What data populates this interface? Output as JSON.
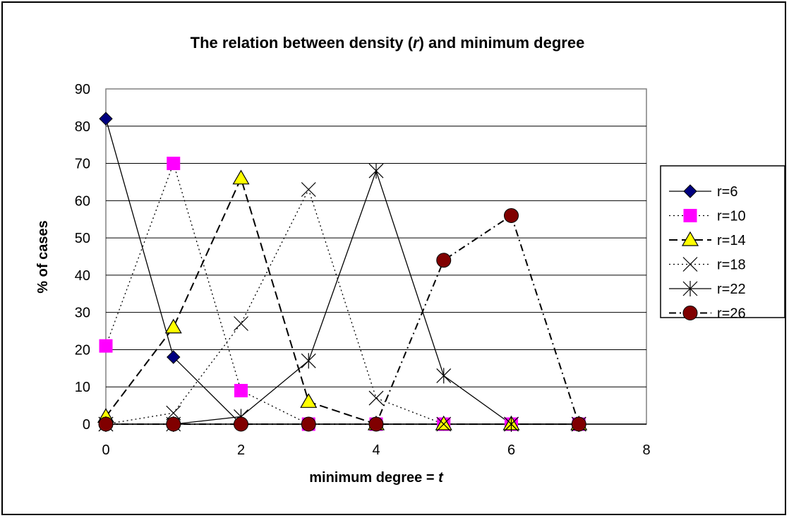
{
  "chart_data": {
    "type": "line",
    "title": {
      "prefix": "The relation between density (",
      "symbol": "r",
      "suffix": ") and minimum degree"
    },
    "xlabel": {
      "prefix": "minimum degree = ",
      "symbol": "t"
    },
    "ylabel": "% of cases",
    "xlim": [
      0,
      8
    ],
    "ylim": [
      0,
      90
    ],
    "x_ticks": [
      "0",
      "2",
      "4",
      "6",
      "8"
    ],
    "y_ticks": [
      "0",
      "10",
      "20",
      "30",
      "40",
      "50",
      "60",
      "70",
      "80",
      "90"
    ],
    "grid": "horizontal",
    "legend_position": "right",
    "series": [
      {
        "name": "r=6",
        "marker": "diamond",
        "line_style": "solid",
        "marker_color": "#000080",
        "points": [
          [
            0,
            82
          ],
          [
            1,
            18
          ],
          [
            2,
            0
          ],
          [
            3,
            0
          ],
          [
            4,
            0
          ],
          [
            5,
            0
          ],
          [
            6,
            0
          ],
          [
            7,
            0
          ]
        ]
      },
      {
        "name": "r=10",
        "marker": "square",
        "line_style": "dotted",
        "marker_color": "#ff00ff",
        "points": [
          [
            0,
            21
          ],
          [
            1,
            70
          ],
          [
            2,
            9
          ],
          [
            3,
            0
          ],
          [
            4,
            0
          ],
          [
            5,
            0
          ],
          [
            6,
            0
          ],
          [
            7,
            0
          ]
        ]
      },
      {
        "name": "r=14",
        "marker": "triangle",
        "line_style": "dashed",
        "marker_color": "#ffff00",
        "points": [
          [
            0,
            2
          ],
          [
            1,
            26
          ],
          [
            2,
            66
          ],
          [
            3,
            6
          ],
          [
            4,
            0
          ],
          [
            5,
            0
          ],
          [
            6,
            0
          ],
          [
            7,
            0
          ]
        ]
      },
      {
        "name": "r=18",
        "marker": "x",
        "line_style": "dotted",
        "marker_color": "#000000",
        "points": [
          [
            0,
            0
          ],
          [
            1,
            3
          ],
          [
            2,
            27
          ],
          [
            3,
            63
          ],
          [
            4,
            7
          ],
          [
            5,
            0
          ],
          [
            6,
            0
          ],
          [
            7,
            0
          ]
        ]
      },
      {
        "name": "r=22",
        "marker": "star",
        "line_style": "solid",
        "marker_color": "#000000",
        "points": [
          [
            0,
            0
          ],
          [
            1,
            0
          ],
          [
            2,
            2
          ],
          [
            3,
            17
          ],
          [
            4,
            68
          ],
          [
            5,
            13
          ],
          [
            6,
            0
          ],
          [
            7,
            0
          ]
        ]
      },
      {
        "name": "r=26",
        "marker": "circle",
        "line_style": "dashdot",
        "marker_color": "#800000",
        "points": [
          [
            0,
            0
          ],
          [
            1,
            0
          ],
          [
            2,
            0
          ],
          [
            3,
            0
          ],
          [
            4,
            0
          ],
          [
            5,
            44
          ],
          [
            6,
            56
          ],
          [
            7,
            0
          ]
        ]
      }
    ]
  }
}
